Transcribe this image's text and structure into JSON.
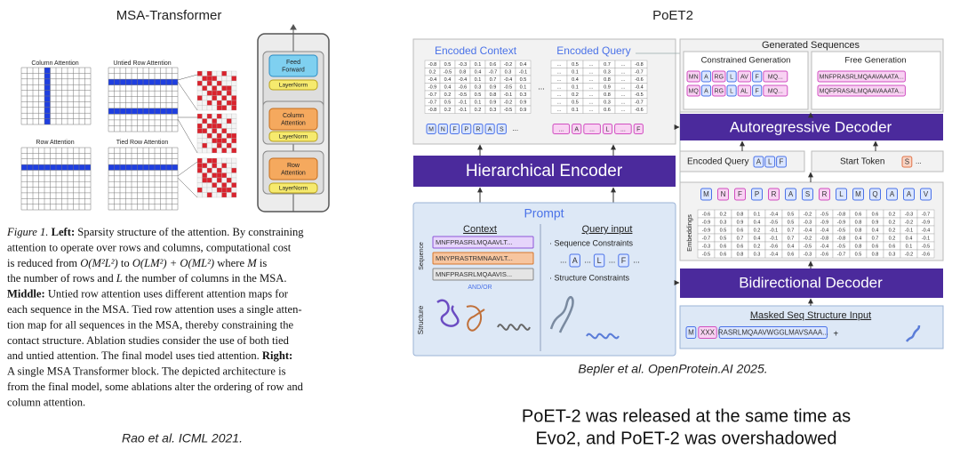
{
  "left": {
    "title": "MSA-Transformer",
    "panels": [
      "Column Attention",
      "Untied Row Attention",
      "Row Attention",
      "Tied Row Attention"
    ],
    "block": [
      "Feed Forward",
      "LayerNorm",
      "Column Attention",
      "LayerNorm",
      "Row Attention",
      "LayerNorm"
    ],
    "caption": [
      [
        {
          "text": "Figure 1. ",
          "style": "italic"
        },
        {
          "text": "Left:",
          "style": "bold"
        },
        {
          "text": " Sparsity structure of the attention. By constraining",
          "style": "normal"
        }
      ],
      [
        {
          "text": "attention to operate over rows and columns, computational cost",
          "style": "normal"
        }
      ],
      [
        {
          "text": "is reduced from ",
          "style": "normal"
        },
        {
          "text": "O(M²L²)",
          "style": "italic"
        },
        {
          "text": " to ",
          "style": "normal"
        },
        {
          "text": "O(LM²) + O(ML²)",
          "style": "italic"
        },
        {
          "text": " where ",
          "style": "normal"
        },
        {
          "text": "M",
          "style": "italic"
        },
        {
          "text": " is",
          "style": "normal"
        }
      ],
      [
        {
          "text": "the number of rows and ",
          "style": "normal"
        },
        {
          "text": "L",
          "style": "italic"
        },
        {
          "text": " the number of columns in the MSA.",
          "style": "normal"
        }
      ],
      [
        {
          "text": "Middle:",
          "style": "bold"
        },
        {
          "text": " Untied row attention uses different attention maps for",
          "style": "normal"
        }
      ],
      [
        {
          "text": "each sequence in the MSA. Tied row attention uses a single atten-",
          "style": "normal"
        }
      ],
      [
        {
          "text": "tion map for all sequences in the MSA, thereby constraining the",
          "style": "normal"
        }
      ],
      [
        {
          "text": "contact structure. Ablation studies consider the use of both tied",
          "style": "normal"
        }
      ],
      [
        {
          "text": "and untied attention. The final model uses tied attention. ",
          "style": "normal"
        },
        {
          "text": "Right:",
          "style": "bold"
        }
      ],
      [
        {
          "text": "A single MSA Transformer block. The depicted architecture is",
          "style": "normal"
        }
      ],
      [
        {
          "text": "from the final model, some ablations alter the ordering of row and",
          "style": "normal"
        }
      ],
      [
        {
          "text": "column attention.",
          "style": "normal"
        }
      ]
    ],
    "citation": "Rao et al. ICML  2021."
  },
  "right": {
    "title": "PoET2",
    "ellipsis": "...",
    "encoded": {
      "context_label": "Encoded Context",
      "query_label": "Encoded Query",
      "context_matrix": [
        [
          -0.8,
          0.5,
          -0.3,
          0.1,
          0.6,
          -0.2,
          0.4
        ],
        [
          0.2,
          -0.5,
          0.8,
          0.4,
          -0.7,
          0.3,
          -0.1
        ],
        [
          -0.4,
          0.4,
          -0.4,
          0.1,
          0.7,
          -0.4,
          0.5
        ],
        [
          -0.9,
          0.4,
          -0.6,
          0.3,
          0.9,
          -0.5,
          0.1
        ],
        [
          -0.7,
          0.2,
          -0.5,
          0.5,
          0.8,
          -0.1,
          0.3
        ],
        [
          -0.7,
          0.5,
          -0.1,
          0.1,
          0.9,
          -0.2,
          0.9
        ],
        [
          -0.8,
          0.2,
          -0.1,
          0.2,
          0.3,
          -0.5,
          0.9
        ]
      ],
      "query_matrix": [
        [
          0.5,
          0.7,
          -0.8
        ],
        [
          0.1,
          0.3,
          -0.7
        ],
        [
          0.4,
          0.8,
          -0.6
        ],
        [
          0.1,
          0.9,
          -0.4
        ],
        [
          0.2,
          0.8,
          -0.5
        ],
        [
          0.5,
          0.3,
          -0.7
        ],
        [
          0.1,
          0.6,
          -0.6
        ]
      ],
      "context_tokens": [
        "M",
        "N",
        "F",
        "P",
        "R",
        "A",
        "S"
      ],
      "query_tokens": [
        "...",
        "A",
        "...",
        "L",
        "...",
        "F"
      ]
    },
    "hierarchical_encoder": "Hierarchical Encoder",
    "prompt": {
      "title": "Prompt",
      "context": "Context",
      "query_input": "Query input",
      "sequence_label": "Sequence",
      "sequences": [
        "MNFPRASRLMQAAVLT...",
        "MNYPRASTRMNAAVLT...",
        "MNFPRASRLMQAAVIS..."
      ],
      "and_or": "AND/OR",
      "structure_label": "Structure",
      "sequence_constraints": "· Sequence Constraints",
      "constraint_tokens": [
        "...",
        "A",
        "...",
        "L",
        "...",
        "F",
        "..."
      ],
      "structure_constraints": "· Structure Constraints"
    },
    "generated": {
      "title": "Generated Sequences",
      "constrained_label": "Constrained Generation",
      "constrained_rows": [
        [
          "MN",
          "A",
          "RG",
          "L",
          "AV",
          "F",
          "MQ..."
        ],
        [
          "MQ",
          "A",
          "RG",
          "L",
          "AL",
          "F",
          "MQ..."
        ]
      ],
      "free_label": "Free Generation",
      "free_rows": [
        "MNFPRASRLMQAAVAAATA...",
        "MQFPRASALMQAAVAAATA..."
      ]
    },
    "autoregressive_decoder": "Autoregressive Decoder",
    "encoded_query": {
      "label": "Encoded Query",
      "tokens": [
        "A",
        "L",
        "F"
      ]
    },
    "start_token": {
      "label": "Start Token",
      "tokens": [
        "S",
        "..."
      ]
    },
    "embeddings": {
      "label": "Embeddings",
      "tokens": [
        "M",
        "N",
        "F",
        "P",
        "R",
        "A",
        "S",
        "R",
        "L",
        "M",
        "Q",
        "A",
        "A",
        "V"
      ],
      "matrix": [
        [
          -0.6,
          0.2,
          0.8,
          0.1,
          -0.4,
          0.5,
          -0.2,
          -0.5,
          -0.8,
          0.6,
          0.6,
          0.2,
          -0.3,
          -0.7
        ],
        [
          -0.9,
          0.3,
          0.9,
          0.4,
          -0.5,
          0.5,
          -0.3,
          -0.9,
          -0.9,
          0.8,
          0.9,
          0.2,
          -0.2,
          -0.9
        ],
        [
          -0.9,
          0.5,
          0.6,
          0.2,
          -0.1,
          0.7,
          -0.4,
          -0.4,
          -0.5,
          0.8,
          0.4,
          0.2,
          -0.1,
          -0.4
        ],
        [
          -0.7,
          0.5,
          0.7,
          0.4,
          -0.1,
          0.7,
          -0.2,
          -0.8,
          -0.8,
          0.4,
          0.7,
          0.2,
          0.4,
          -0.1
        ],
        [
          -0.3,
          0.6,
          0.6,
          0.2,
          -0.6,
          0.4,
          -0.5,
          -0.4,
          -0.5,
          0.8,
          0.6,
          0.6,
          0.1,
          -0.5
        ],
        [
          -0.5,
          0.6,
          0.8,
          0.3,
          -0.4,
          0.6,
          -0.3,
          -0.6,
          -0.7,
          0.5,
          0.8,
          0.3,
          -0.2,
          -0.6
        ]
      ]
    },
    "bidirectional_decoder": "Bidirectional Decoder",
    "masked_input": {
      "label": "Masked Seq Structure Input",
      "tokens": [
        "M",
        "XXX",
        "RASRLMQAAVWGGLMAVSAAA..."
      ],
      "plus": "+"
    },
    "citation": "Bepler et al. OpenProtein.AI 2025.",
    "footer": [
      "PoET-2 was released at the same time as",
      "Evo2, and PoET-2 was overshadowed"
    ]
  }
}
